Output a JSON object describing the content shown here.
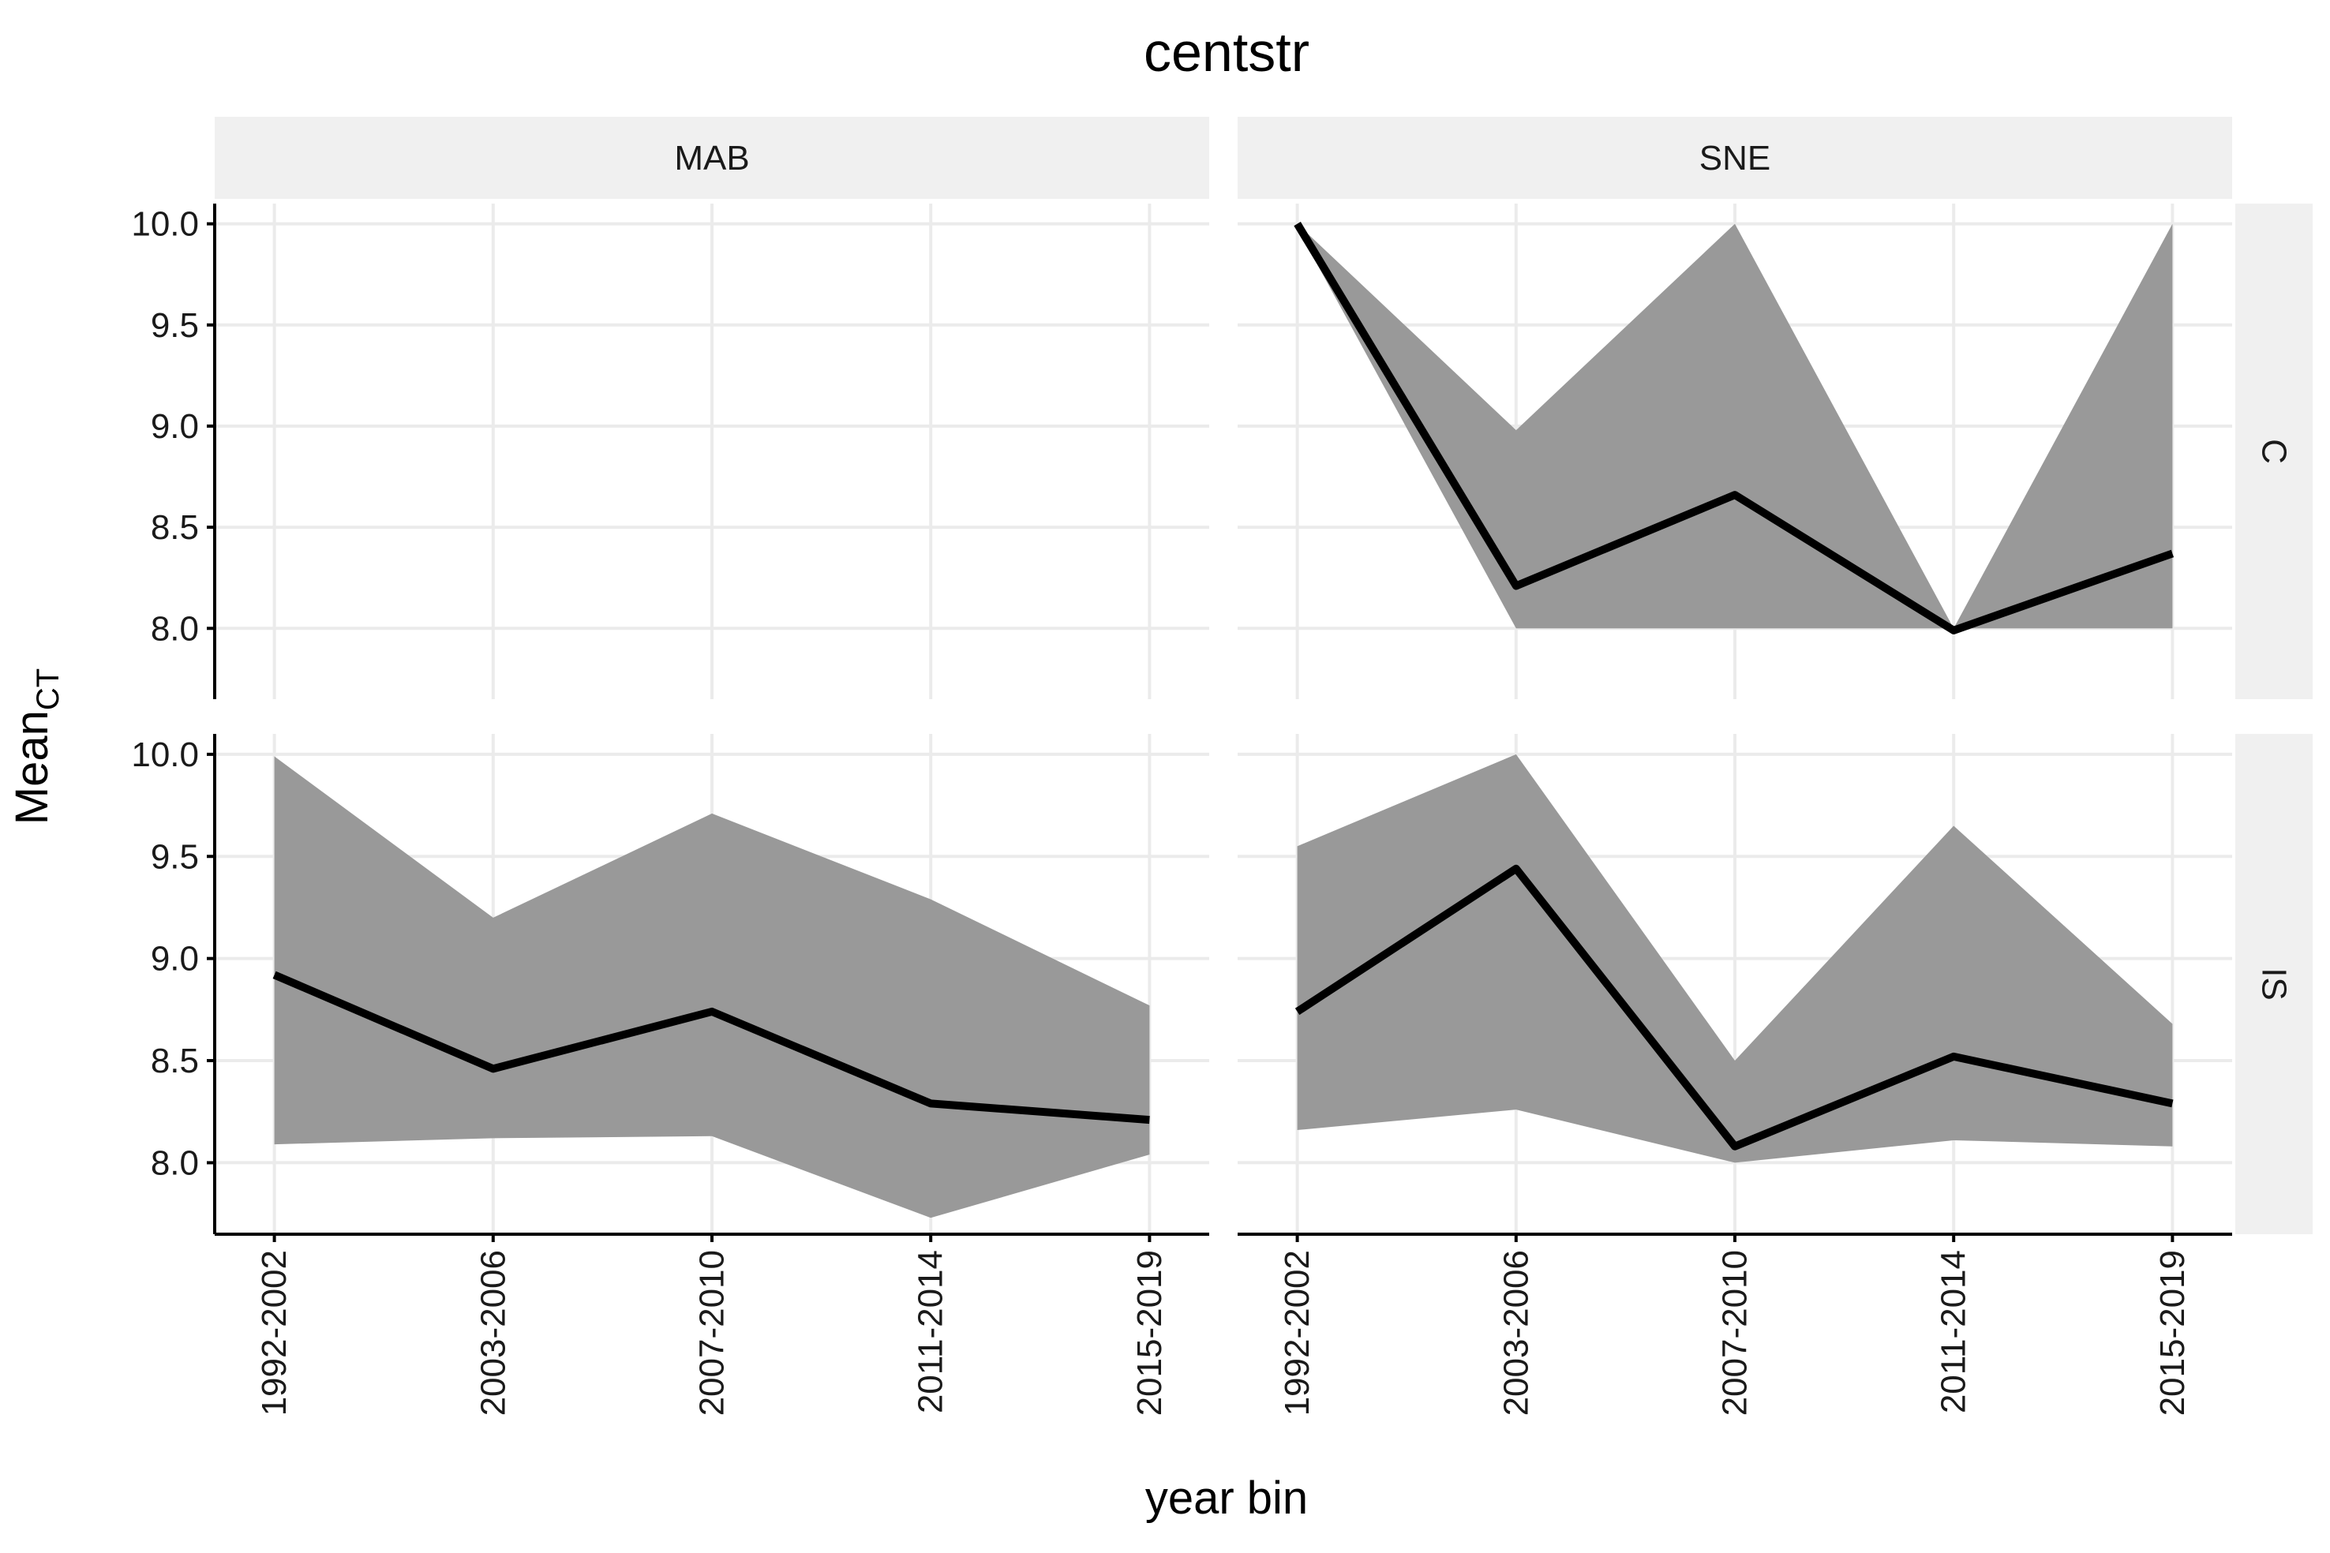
{
  "chart_data": {
    "type": "area",
    "title": "centstr",
    "xlabel": "year bin",
    "ylabel": {
      "main": "Mean",
      "subscript": "CT"
    },
    "categories": [
      "1992-2002",
      "2003-2006",
      "2007-2010",
      "2011-2014",
      "2015-2019"
    ],
    "ylim": [
      7.65,
      10.1
    ],
    "yticks": [
      "8.0",
      "8.5",
      "9.0",
      "9.5",
      "10.0"
    ],
    "grid": true,
    "legend": "none",
    "facet_columns": [
      "MAB",
      "SNE"
    ],
    "facet_rows": [
      "C",
      "IS"
    ],
    "panels": [
      {
        "col": "MAB",
        "row": "C",
        "series": []
      },
      {
        "col": "SNE",
        "row": "C",
        "series": [
          {
            "mean": [
              10.0,
              8.21,
              8.66,
              7.99,
              8.37
            ],
            "lower": [
              9.98,
              8.0,
              8.0,
              8.0,
              8.0
            ],
            "upper": [
              10.0,
              8.98,
              10.0,
              8.0,
              10.0
            ]
          }
        ]
      },
      {
        "col": "MAB",
        "row": "IS",
        "series": [
          {
            "mean": [
              8.92,
              8.46,
              8.74,
              8.29,
              8.21
            ],
            "lower": [
              8.09,
              8.12,
              8.13,
              7.73,
              8.04
            ],
            "upper": [
              9.99,
              9.2,
              9.71,
              9.29,
              8.77
            ]
          }
        ]
      },
      {
        "col": "SNE",
        "row": "IS",
        "series": [
          {
            "mean": [
              8.74,
              9.44,
              8.08,
              8.52,
              8.29
            ],
            "lower": [
              8.16,
              8.26,
              8.0,
              8.11,
              8.08
            ],
            "upper": [
              9.55,
              10.0,
              8.5,
              9.65,
              8.68
            ]
          }
        ]
      }
    ]
  }
}
